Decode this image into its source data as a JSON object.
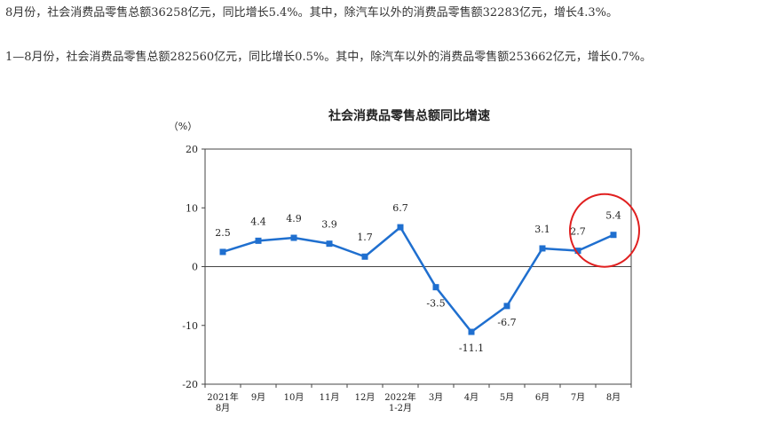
{
  "article": {
    "paragraph1": "8月份，社会消费品零售总额36258亿元，同比增长5.4%。其中，除汽车以外的消费品零售额32283亿元，增长4.3%。",
    "paragraph2": "1—8月份，社会消费品零售总额282560亿元，同比增长0.5%。其中，除汽车以外的消费品零售额253662亿元，增长0.7%。"
  },
  "chart_data": {
    "type": "line",
    "title": "社会消费品零售总额同比增速",
    "ylabel": "（%）",
    "xlabel": "",
    "ylim": [
      -20,
      20
    ],
    "yticks": [
      20,
      10,
      0,
      -10,
      -20
    ],
    "categories": [
      [
        "2021年",
        "8月"
      ],
      [
        "9月"
      ],
      [
        "10月"
      ],
      [
        "11月"
      ],
      [
        "12月"
      ],
      [
        "2022年",
        "1-2月"
      ],
      [
        "3月"
      ],
      [
        "4月"
      ],
      [
        "5月"
      ],
      [
        "6月"
      ],
      [
        "7月"
      ],
      [
        "8月"
      ]
    ],
    "series": [
      {
        "values": [
          2.5,
          4.4,
          4.9,
          3.9,
          1.7,
          6.7,
          -3.5,
          -11.1,
          -6.7,
          3.1,
          2.7,
          5.4
        ]
      }
    ],
    "data_labels": [
      "2.5",
      "4.4",
      "4.9",
      "3.9",
      "1.7",
      "6.7",
      "-3.5",
      "-11.1",
      "-6.7",
      "3.1",
      "2.7",
      "5.4"
    ],
    "line_color": "#1f6fcf",
    "highlight_color": "#e02020",
    "highlight_index": 11,
    "grid": false
  }
}
